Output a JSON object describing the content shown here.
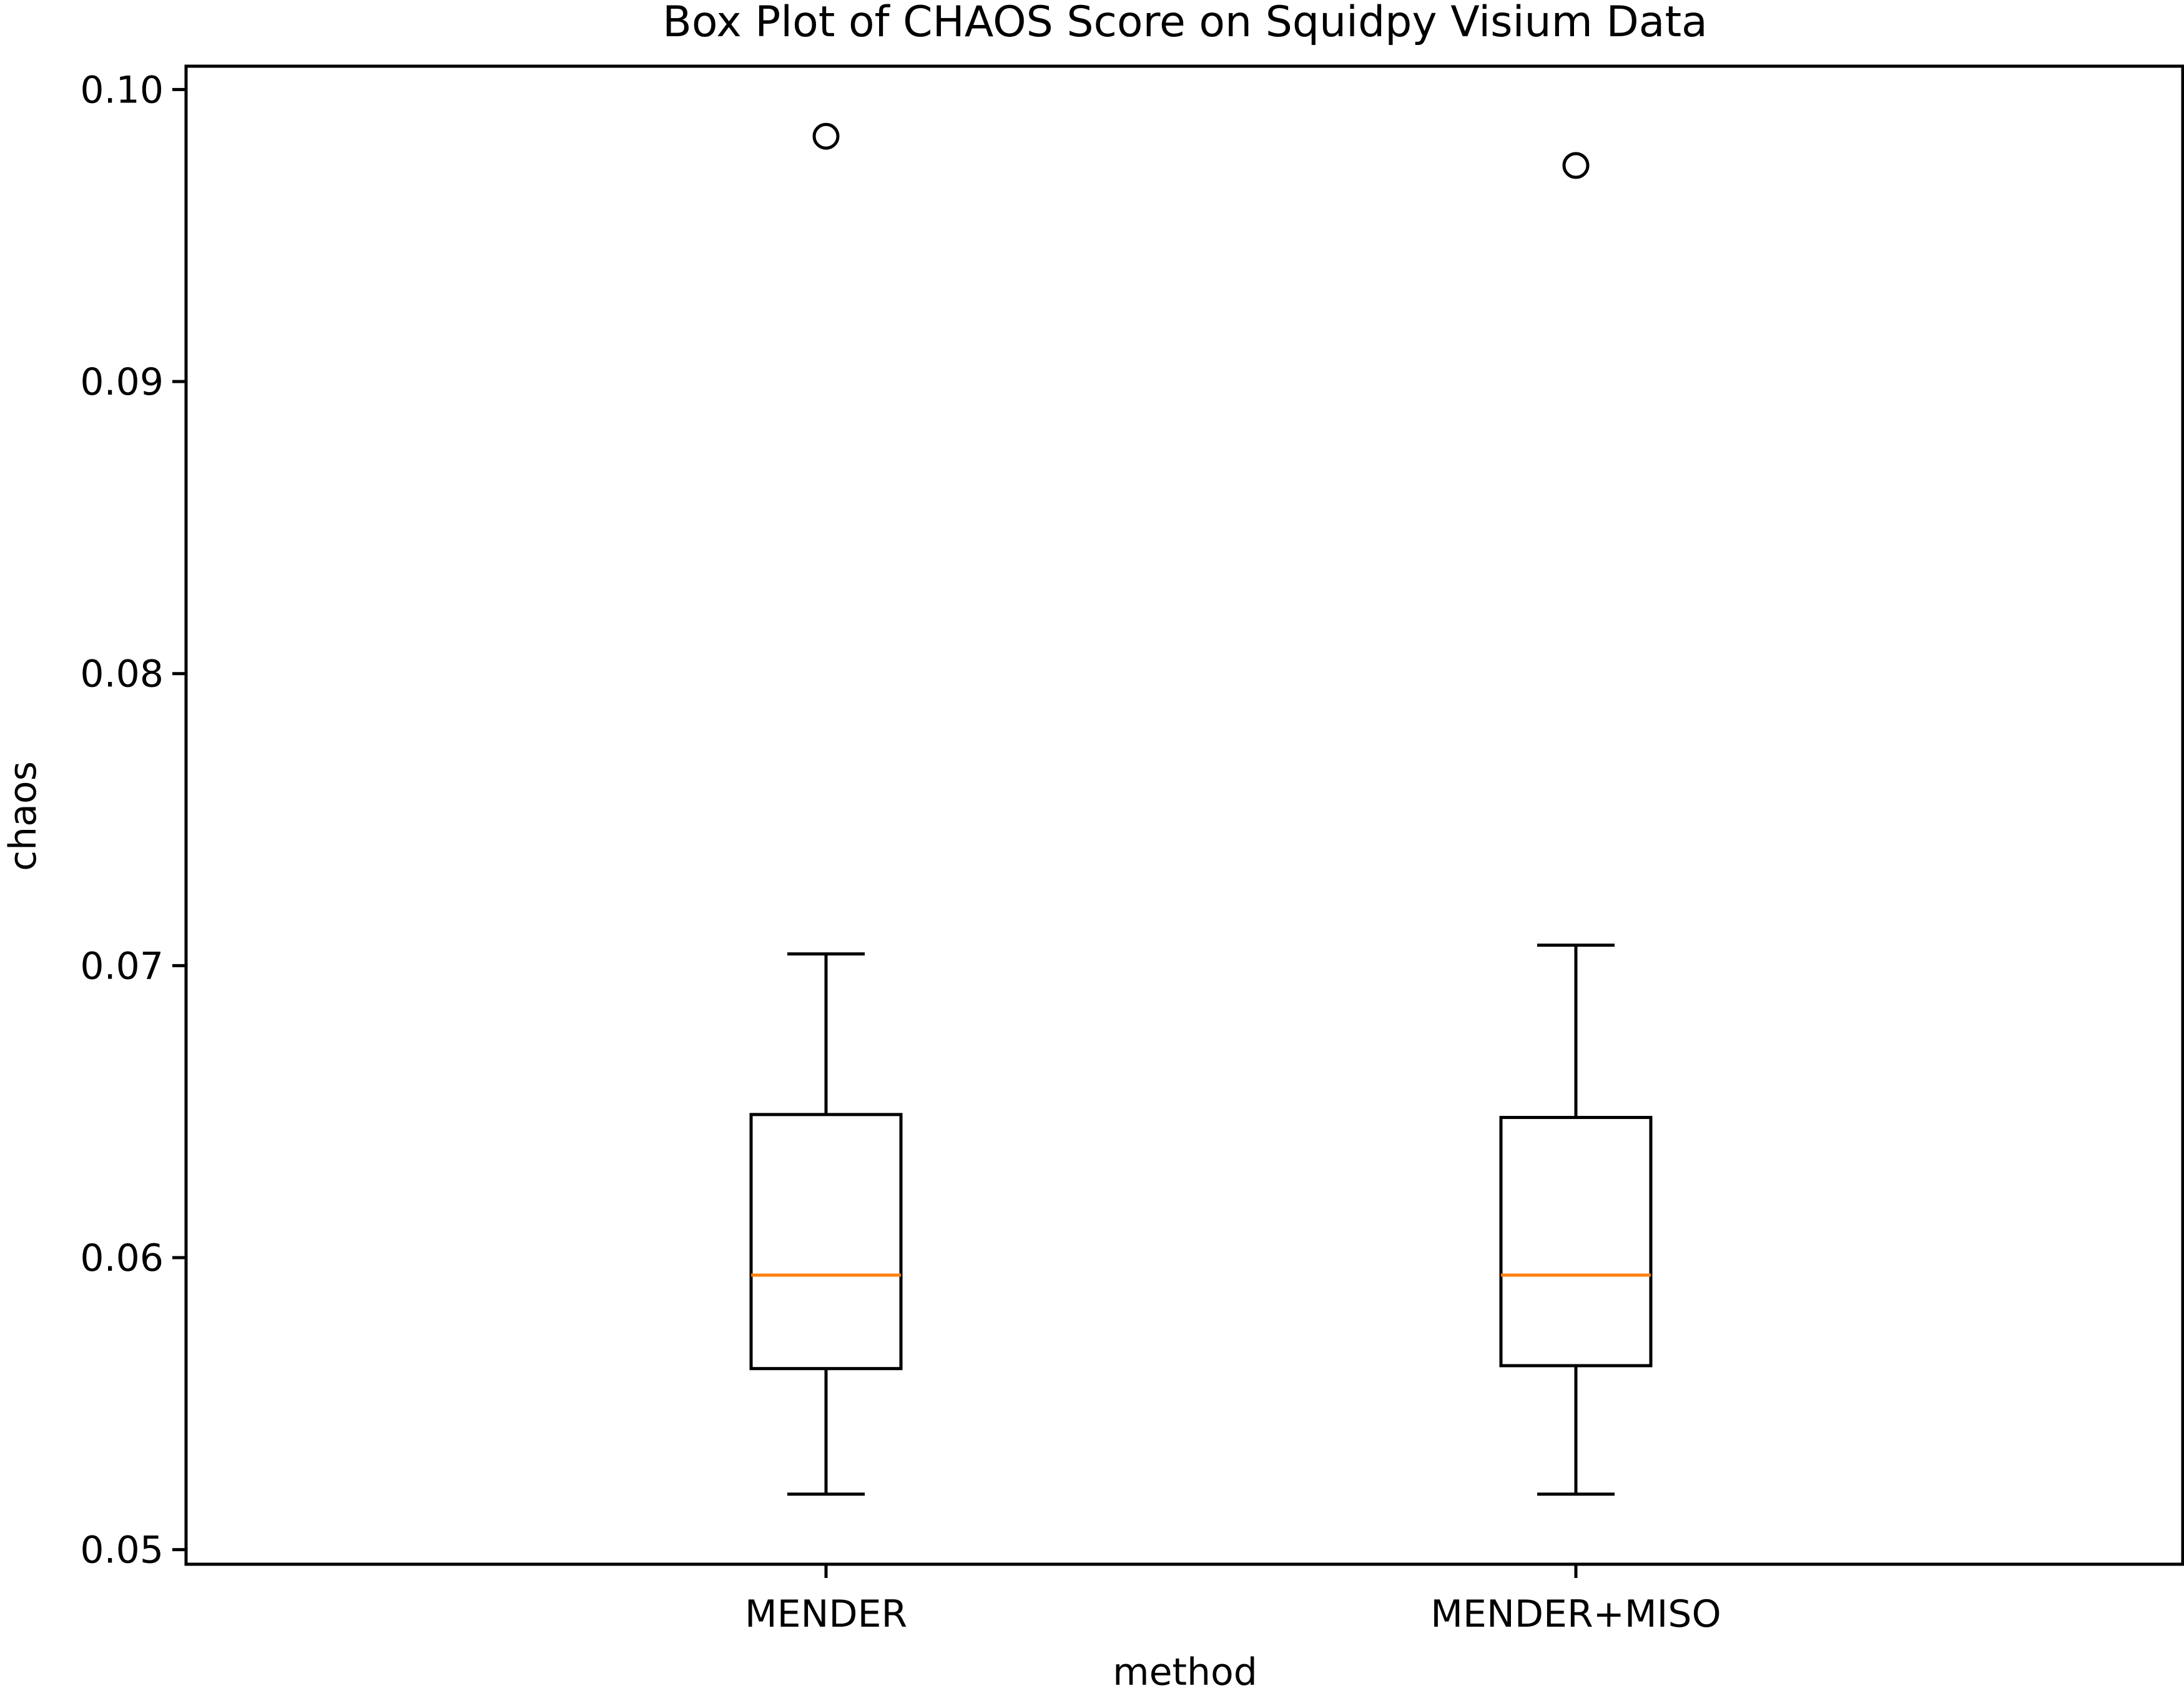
{
  "chart_data": {
    "type": "box",
    "title": "Box Plot of CHAOS Score on Squidpy Visium Data",
    "xlabel": "method",
    "ylabel": "chaos",
    "ylim": [
      0.0495,
      0.1008
    ],
    "yticks": [
      0.05,
      0.06,
      0.07,
      0.08,
      0.09,
      0.1
    ],
    "ytick_labels": [
      "0.05",
      "0.06",
      "0.07",
      "0.08",
      "0.09",
      "0.10"
    ],
    "grid": false,
    "categories": [
      "MENDER",
      "MENDER+MISO"
    ],
    "boxes": [
      {
        "name": "MENDER",
        "whisker_low": 0.0519,
        "q1": 0.0562,
        "median": 0.0594,
        "q3": 0.0649,
        "whisker_high": 0.0704,
        "outliers": [
          0.0984
        ]
      },
      {
        "name": "MENDER+MISO",
        "whisker_low": 0.0519,
        "q1": 0.0563,
        "median": 0.0594,
        "q3": 0.0648,
        "whisker_high": 0.0707,
        "outliers": [
          0.0974
        ]
      }
    ],
    "colors": {
      "box": "#000000",
      "median": "#ff7f0e",
      "axes": "#000000",
      "background": "#ffffff"
    }
  }
}
